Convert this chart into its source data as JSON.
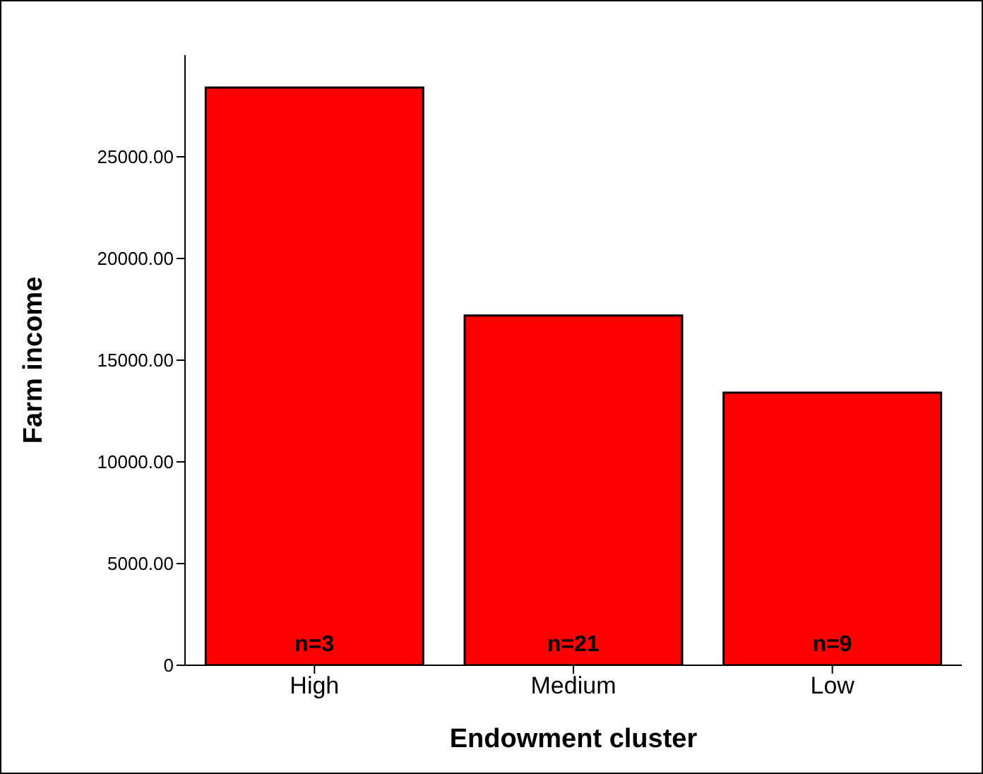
{
  "chart_data": {
    "type": "bar",
    "xlabel": "Endowment cluster",
    "ylabel": "Farm income",
    "categories": [
      "High",
      "Medium",
      "Low"
    ],
    "values": [
      28400,
      17200,
      13400
    ],
    "color": "#ff0000",
    "ylim": [
      0,
      30000
    ],
    "yticks": [
      0,
      {
        "value": 5000,
        "label": "5000.00"
      },
      {
        "value": 10000,
        "label": "10000.00"
      },
      {
        "value": 15000,
        "label": "15000.00"
      },
      {
        "value": 20000,
        "label": "20000.00"
      },
      {
        "value": 25000,
        "label": "25000.00"
      }
    ],
    "annotations": [
      "n=3",
      "n=21",
      "n=9"
    ],
    "grid": false,
    "legend": false
  }
}
